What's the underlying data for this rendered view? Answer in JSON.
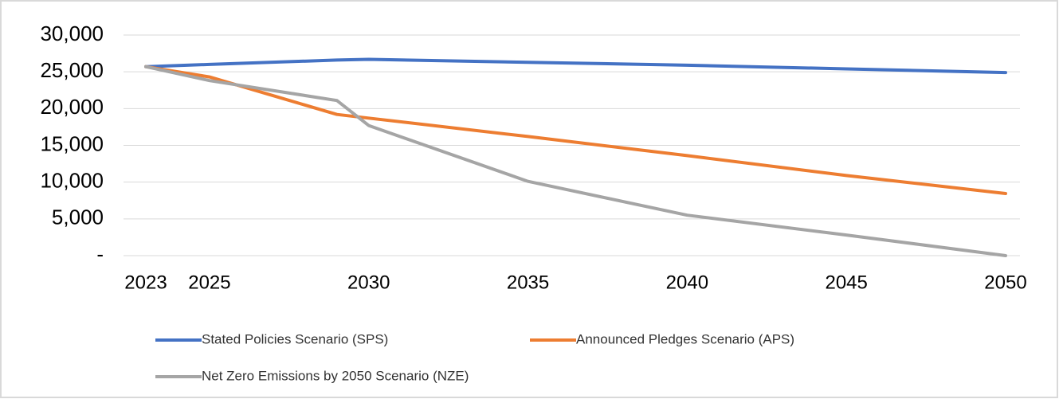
{
  "chart_data": {
    "type": "line",
    "x": [
      2023,
      2025,
      2029,
      2030,
      2035,
      2040,
      2045,
      2050
    ],
    "xlim": [
      2023,
      2050
    ],
    "xticks": [
      2023,
      2025,
      2030,
      2035,
      2040,
      2045,
      2050
    ],
    "ylim": [
      0,
      30000
    ],
    "yticks": [
      {
        "value": 0,
        "label": "-"
      },
      {
        "value": 5000,
        "label": "5,000"
      },
      {
        "value": 10000,
        "label": "10,000"
      },
      {
        "value": 15000,
        "label": "15,000"
      },
      {
        "value": 20000,
        "label": "20,000"
      },
      {
        "value": 25000,
        "label": "25,000"
      },
      {
        "value": 30000,
        "label": "30,000"
      }
    ],
    "grid": true,
    "legend": "bottom",
    "series": [
      {
        "name": "Stated Policies Scenario (SPS)",
        "color": "#4472c4",
        "values": [
          25700,
          26000,
          26600,
          26700,
          26300,
          25900,
          25400,
          24900
        ]
      },
      {
        "name": "Announced Pledges Scenario (APS)",
        "color": "#ed7d31",
        "values": [
          25700,
          24300,
          19200,
          18700,
          16200,
          13600,
          10900,
          8450
        ]
      },
      {
        "name": "Net Zero Emissions by 2050 Scenario (NZE)",
        "color": "#a5a5a5",
        "values": [
          25700,
          23800,
          21100,
          17700,
          10100,
          5500,
          2800,
          0
        ]
      }
    ]
  }
}
